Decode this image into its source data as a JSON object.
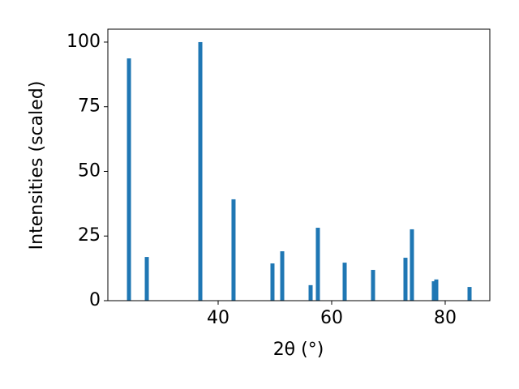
{
  "chart_data": {
    "type": "bar",
    "x_label": "2θ (°)",
    "y_label": "Intensities (scaled)",
    "x": [
      24.29,
      27.43,
      36.86,
      42.71,
      49.57,
      51.29,
      56.29,
      57.57,
      62.29,
      67.29,
      73.0,
      74.14,
      78.0,
      78.43,
      84.29
    ],
    "values": [
      93.7,
      16.9,
      100,
      39.2,
      14.4,
      19.1,
      6,
      28.2,
      14.7,
      11.9,
      16.6,
      27.6,
      7.5,
      8.2,
      5.3
    ],
    "color": "#1f77b4",
    "xlim": [
      20.57,
      87.86
    ],
    "xticks": [
      40,
      60,
      80
    ],
    "ylim": [
      0,
      105
    ],
    "yticks": [
      0,
      25,
      50,
      75,
      100
    ],
    "grid": false
  }
}
